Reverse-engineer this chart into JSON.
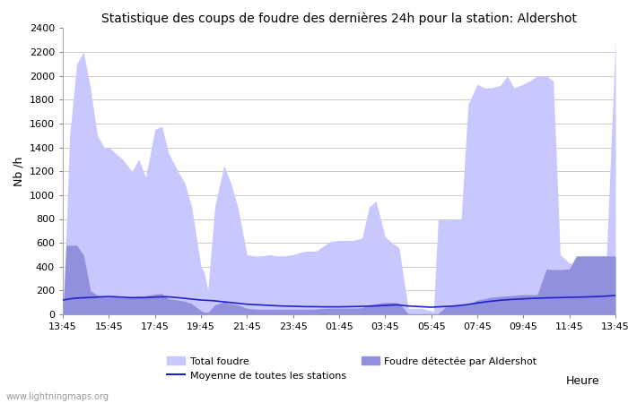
{
  "title": "Statistique des coups de foudre des dernières 24h pour la station: Aldershot",
  "xlabel": "Heure",
  "ylabel": "Nb /h",
  "xlim": [
    0,
    24
  ],
  "ylim": [
    0,
    2400
  ],
  "yticks": [
    0,
    200,
    400,
    600,
    800,
    1000,
    1200,
    1400,
    1600,
    1800,
    2000,
    2200,
    2400
  ],
  "x_labels": [
    "13:45",
    "15:45",
    "17:45",
    "19:45",
    "21:45",
    "23:45",
    "01:45",
    "03:45",
    "05:45",
    "07:45",
    "09:45",
    "11:45",
    "13:45"
  ],
  "x_positions": [
    0,
    2,
    4,
    6,
    8,
    10,
    12,
    14,
    16,
    18,
    20,
    22,
    24
  ],
  "total_foudre_color": "#c8c8ff",
  "local_foudre_color": "#9090dd",
  "moyenne_color": "#2222cc",
  "background_color": "#ffffff",
  "grid_color": "#cccccc",
  "watermark": "www.lightningmaps.org",
  "total_foudre_x": [
    0.0,
    0.15,
    0.3,
    0.6,
    0.9,
    1.2,
    1.5,
    1.8,
    2.0,
    2.3,
    2.6,
    3.0,
    3.3,
    3.6,
    4.0,
    4.3,
    4.6,
    5.0,
    5.3,
    5.6,
    6.0,
    6.15,
    6.3,
    6.6,
    7.0,
    7.3,
    7.6,
    8.0,
    8.3,
    8.6,
    9.0,
    9.3,
    9.6,
    10.0,
    10.3,
    10.6,
    11.0,
    11.3,
    11.6,
    12.0,
    12.3,
    12.6,
    13.0,
    13.3,
    13.6,
    14.0,
    14.3,
    14.6,
    15.0,
    15.3,
    15.6,
    16.0,
    16.1,
    16.3,
    16.6,
    17.0,
    17.3,
    17.6,
    18.0,
    18.3,
    18.6,
    19.0,
    19.3,
    19.6,
    20.0,
    20.3,
    20.6,
    21.0,
    21.3,
    21.6,
    22.0,
    22.3,
    22.6,
    23.0,
    23.3,
    23.6,
    24.0
  ],
  "total_foudre_y": [
    0,
    700,
    1500,
    2100,
    2200,
    1900,
    1500,
    1400,
    1400,
    1350,
    1300,
    1200,
    1300,
    1150,
    1550,
    1580,
    1350,
    1200,
    1100,
    900,
    400,
    350,
    200,
    900,
    1250,
    1100,
    900,
    500,
    490,
    490,
    500,
    490,
    490,
    500,
    520,
    530,
    530,
    570,
    610,
    620,
    620,
    620,
    640,
    900,
    950,
    650,
    600,
    560,
    50,
    50,
    50,
    30,
    20,
    800,
    790,
    800,
    800,
    1760,
    1930,
    1900,
    1900,
    1920,
    2000,
    1900,
    1930,
    1960,
    2000,
    2000,
    1960,
    500,
    430,
    420,
    420,
    430,
    430,
    430,
    2300
  ],
  "local_foudre_x": [
    0.0,
    0.15,
    0.3,
    0.6,
    0.9,
    1.2,
    1.5,
    1.8,
    2.0,
    2.3,
    2.6,
    3.0,
    3.3,
    3.6,
    4.0,
    4.3,
    4.6,
    5.0,
    5.3,
    5.6,
    6.0,
    6.15,
    6.3,
    6.6,
    7.0,
    7.3,
    7.6,
    8.0,
    8.3,
    8.6,
    9.0,
    9.3,
    9.6,
    10.0,
    10.3,
    10.6,
    11.0,
    11.3,
    11.6,
    12.0,
    12.3,
    12.6,
    13.0,
    13.3,
    13.6,
    14.0,
    14.3,
    14.6,
    15.0,
    15.3,
    15.6,
    16.0,
    16.3,
    16.6,
    17.0,
    17.3,
    17.6,
    18.0,
    18.3,
    18.6,
    19.0,
    19.3,
    19.6,
    20.0,
    20.3,
    20.6,
    21.0,
    21.3,
    21.6,
    22.0,
    22.3,
    22.6,
    23.0,
    23.3,
    23.6,
    24.0
  ],
  "local_foudre_y": [
    0,
    580,
    580,
    580,
    500,
    200,
    160,
    150,
    145,
    150,
    140,
    145,
    155,
    155,
    170,
    175,
    130,
    120,
    110,
    90,
    30,
    20,
    15,
    80,
    105,
    90,
    80,
    50,
    45,
    42,
    42,
    42,
    42,
    42,
    42,
    42,
    44,
    50,
    52,
    52,
    52,
    52,
    55,
    80,
    90,
    100,
    100,
    95,
    5,
    5,
    5,
    5,
    5,
    60,
    75,
    80,
    80,
    120,
    130,
    145,
    150,
    155,
    160,
    165,
    165,
    165,
    380,
    375,
    375,
    380,
    490,
    490,
    490,
    490,
    490,
    490
  ],
  "moyenne_x": [
    0.0,
    0.5,
    1.0,
    1.5,
    2.0,
    2.5,
    3.0,
    3.5,
    4.0,
    4.5,
    5.0,
    5.5,
    6.0,
    6.5,
    7.0,
    7.5,
    8.0,
    8.5,
    9.0,
    9.5,
    10.0,
    10.5,
    11.0,
    11.5,
    12.0,
    12.5,
    13.0,
    13.5,
    14.0,
    14.5,
    15.0,
    15.5,
    16.0,
    16.5,
    17.0,
    17.5,
    18.0,
    18.5,
    19.0,
    19.5,
    20.0,
    20.5,
    21.0,
    21.5,
    22.0,
    22.5,
    23.0,
    23.5,
    24.0
  ],
  "moyenne_y": [
    120,
    135,
    140,
    145,
    150,
    145,
    140,
    140,
    145,
    148,
    140,
    130,
    120,
    115,
    105,
    95,
    85,
    80,
    75,
    70,
    68,
    65,
    64,
    63,
    63,
    65,
    67,
    70,
    75,
    80,
    70,
    65,
    60,
    65,
    70,
    80,
    95,
    108,
    118,
    125,
    130,
    135,
    138,
    140,
    143,
    145,
    148,
    152,
    158
  ]
}
